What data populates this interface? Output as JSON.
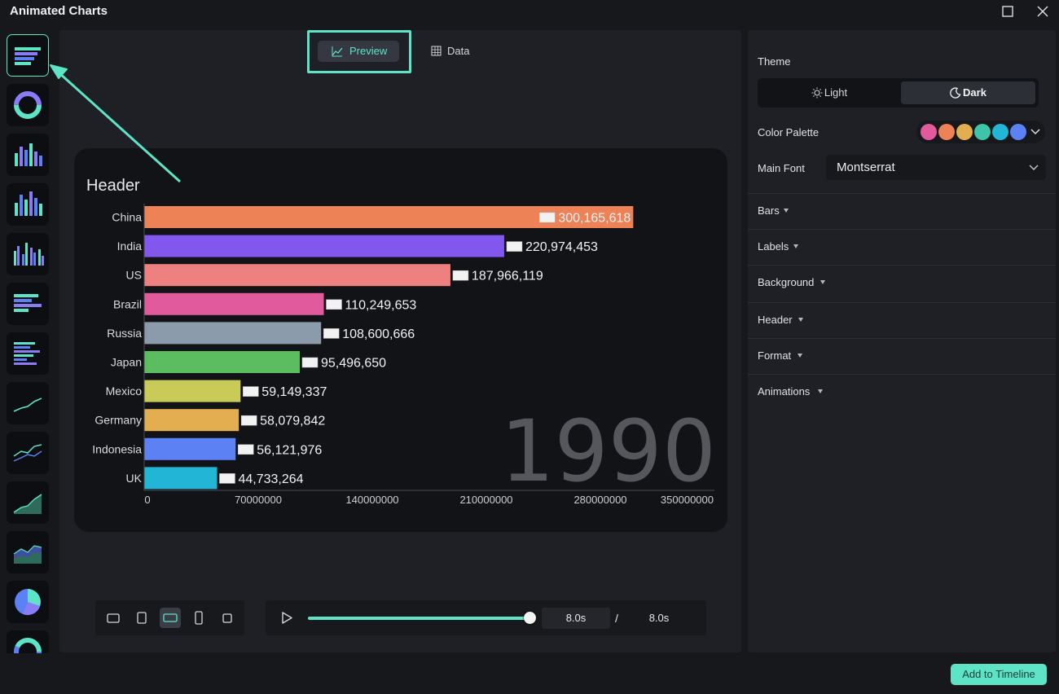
{
  "window": {
    "title": "Animated Charts",
    "maximize_icon": "maximize-icon",
    "close_icon": "close-icon"
  },
  "sidebar": {
    "chart_types": [
      {
        "name": "horizontal-bar-race",
        "icon": "bar-race-icon",
        "selected": true
      },
      {
        "name": "donut",
        "icon": "donut-chart-icon"
      },
      {
        "name": "vertical-bar",
        "icon": "vertical-bar-icon"
      },
      {
        "name": "vertical-bar-2",
        "icon": "vertical-bar-icon"
      },
      {
        "name": "grouped-bar",
        "icon": "grouped-bar-icon"
      },
      {
        "name": "horizontal-bar",
        "icon": "horizontal-bar-icon"
      },
      {
        "name": "horizontal-bar-2",
        "icon": "horizontal-bar-icon"
      },
      {
        "name": "line",
        "icon": "line-chart-icon"
      },
      {
        "name": "multi-line",
        "icon": "multi-line-chart-icon"
      },
      {
        "name": "area",
        "icon": "area-chart-icon"
      },
      {
        "name": "stacked-area",
        "icon": "stacked-area-icon"
      },
      {
        "name": "pie",
        "icon": "pie-chart-icon"
      },
      {
        "name": "donut-2",
        "icon": "donut-chart-icon"
      }
    ]
  },
  "tabs": {
    "preview_label": "Preview",
    "data_label": "Data"
  },
  "chart_data": {
    "type": "bar",
    "orientation": "horizontal",
    "title": "Header",
    "year_label": "1990",
    "categories": [
      "China",
      "India",
      "US",
      "Brazil",
      "Russia",
      "Japan",
      "Mexico",
      "Germany",
      "Indonesia",
      "UK"
    ],
    "values": [
      300165618,
      220974453,
      187966119,
      110249653,
      108600666,
      95496650,
      59149337,
      58079842,
      56121976,
      44733264
    ],
    "value_labels": [
      "300,165,618",
      "220,974,453",
      "187,966,119",
      "110,249,653",
      "108,600,666",
      "95,496,650",
      "59,149,337",
      "58,079,842",
      "56,121,976",
      "44,733,264"
    ],
    "bar_colors": [
      "#ee8257",
      "#8257ee",
      "#ee8080",
      "#e05a9c",
      "#8c9bab",
      "#5bbd5f",
      "#c8cb57",
      "#e3ae4f",
      "#5b81f5",
      "#23b5d6"
    ],
    "xlim": [
      0,
      350000000
    ],
    "xticks": [
      0,
      70000000,
      140000000,
      210000000,
      280000000,
      350000000
    ],
    "xtick_labels": [
      "0",
      "70000000",
      "140000000",
      "210000000",
      "280000000",
      "350000000"
    ],
    "grid": false,
    "background": "#121317"
  },
  "ratios": {
    "options": [
      "landscape-16-9",
      "portrait-3-4",
      "widescreen",
      "portrait-9-16",
      "square-1-1"
    ],
    "selected": "widescreen"
  },
  "player": {
    "progress": 1.0,
    "current_time": "8.0s",
    "separator": "/",
    "total_time": "8.0s"
  },
  "settings": {
    "theme_label": "Theme",
    "theme_light": "Light",
    "theme_dark": "Dark",
    "theme_selected": "Dark",
    "color_palette_label": "Color Palette",
    "palette_colors": [
      "#e05a9c",
      "#ee8257",
      "#e3ae4f",
      "#3ec4a8",
      "#23b5d6",
      "#5b81f5"
    ],
    "main_font_label": "Main Font",
    "main_font_value": "Montserrat",
    "sections": [
      "Bars",
      "Labels",
      "Background",
      "Header",
      "Format",
      "Animations"
    ]
  },
  "footer": {
    "add_button": "Add to Timeline"
  },
  "accent": "#5de4c7"
}
